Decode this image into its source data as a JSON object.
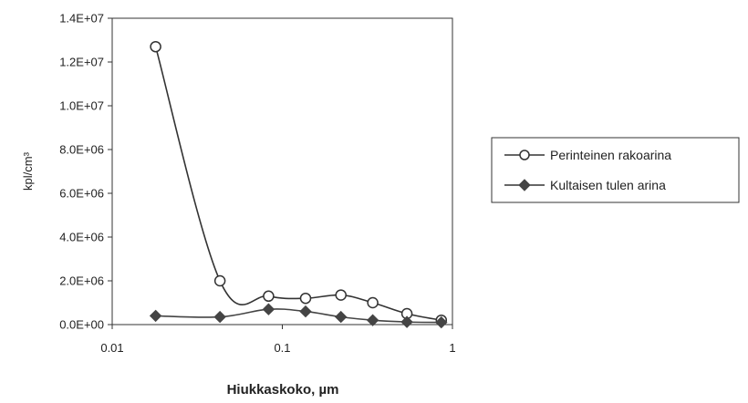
{
  "chart_data": {
    "type": "line",
    "xscale": "log",
    "xlim": [
      0.01,
      1
    ],
    "ylim": [
      0,
      14000000
    ],
    "xlabel": "Hiukkaskoko, µm",
    "ylabel": "kpl/cm³",
    "xticks": [
      0.01,
      0.1,
      1
    ],
    "xtick_labels": [
      "0.01",
      "0.1",
      "1"
    ],
    "yticks": [
      0,
      2000000,
      4000000,
      6000000,
      8000000,
      10000000,
      12000000,
      14000000
    ],
    "ytick_labels": [
      "0.0E+00",
      "2.0E+06",
      "4.0E+06",
      "6.0E+06",
      "8.0E+06",
      "1.0E+07",
      "1.2E+07",
      "1.4E+07"
    ],
    "grid": false,
    "legend_position": "right",
    "series": [
      {
        "name": "Perinteinen rakoarina",
        "marker": "open-circle",
        "color": "#333333",
        "x": [
          0.018,
          0.043,
          0.083,
          0.137,
          0.221,
          0.34,
          0.54,
          0.86
        ],
        "y": [
          12700000,
          2000000,
          1300000,
          1200000,
          1350000,
          1000000,
          500000,
          200000
        ]
      },
      {
        "name": "Kultaisen tulen arina",
        "marker": "filled-diamond",
        "color": "#444444",
        "x": [
          0.018,
          0.043,
          0.083,
          0.137,
          0.221,
          0.34,
          0.54,
          0.86
        ],
        "y": [
          400000,
          350000,
          700000,
          600000,
          350000,
          200000,
          120000,
          100000
        ]
      }
    ]
  }
}
